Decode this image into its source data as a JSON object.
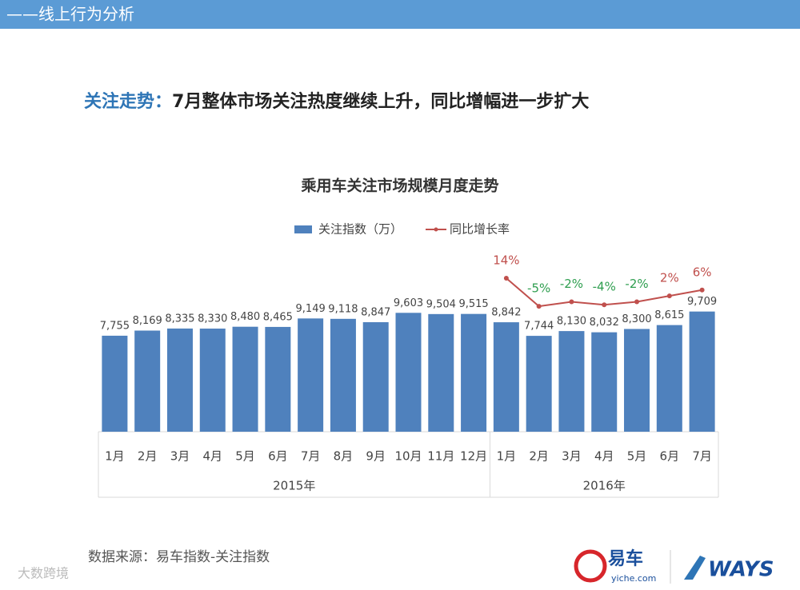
{
  "header": {
    "section": "——线上行为分析",
    "headline_key": "关注走势：",
    "headline": "7月整体市场关注热度继续上升，同比增幅进一步扩大"
  },
  "chart_data": {
    "type": "bar",
    "title": "乘用车关注市场规模月度走势",
    "category_groups": [
      {
        "label": "2015年",
        "categories": [
          "1月",
          "2月",
          "3月",
          "4月",
          "5月",
          "6月",
          "7月",
          "8月",
          "9月",
          "10月",
          "11月",
          "12月"
        ]
      },
      {
        "label": "2016年",
        "categories": [
          "1月",
          "2月",
          "3月",
          "4月",
          "5月",
          "6月",
          "7月"
        ]
      }
    ],
    "series": [
      {
        "name": "关注指数（万）",
        "type": "bar",
        "color": "#4f81bd",
        "values": [
          7755,
          8169,
          8335,
          8330,
          8480,
          8465,
          9149,
          9118,
          8847,
          9603,
          9504,
          9515,
          8842,
          7744,
          8130,
          8032,
          8300,
          8615,
          9709
        ],
        "value_labels": [
          "7,755",
          "8,169",
          "8,335",
          "8,330",
          "8,480",
          "8,465",
          "9,149",
          "9,118",
          "8,847",
          "9,603",
          "9,504",
          "9,515",
          "8,842",
          "7,744",
          "8,130",
          "8,032",
          "8,300",
          "8,615",
          "9,709"
        ]
      },
      {
        "name": "同比增长率",
        "type": "line",
        "axis": "y2",
        "color": "#c0504d",
        "positive_color": "#c0504d",
        "negative_color": "#2e9e4f",
        "values": [
          null,
          null,
          null,
          null,
          null,
          null,
          null,
          null,
          null,
          null,
          null,
          null,
          14,
          -5,
          -2,
          -4,
          -2,
          2,
          6
        ],
        "value_labels": [
          null,
          null,
          null,
          null,
          null,
          null,
          null,
          null,
          null,
          null,
          null,
          null,
          "14%",
          "-5%",
          "-2%",
          "-4%",
          "-2%",
          "2%",
          "6%"
        ]
      }
    ],
    "ylim": [
      0,
      15500
    ],
    "y2lim": [
      -90,
      40
    ],
    "legend": "top"
  },
  "footer": {
    "source": "数据来源：易车指数-关注指数",
    "logo1": "易车",
    "logo1_sub": "yiche.com",
    "logo2": "WAYS",
    "watermark": "大数跨境"
  }
}
